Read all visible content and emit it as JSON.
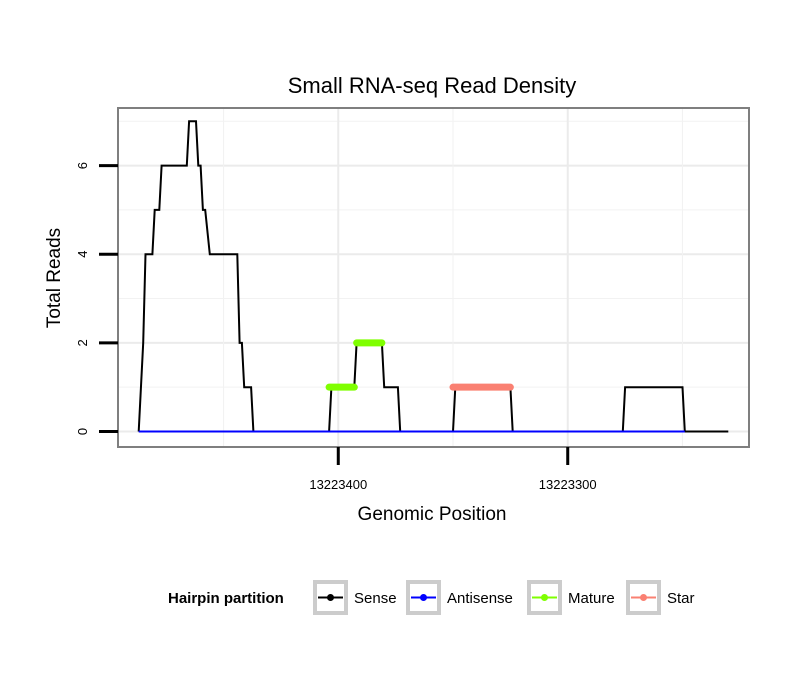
{
  "chart_data": {
    "type": "line",
    "title": "Small RNA-seq Read Density",
    "xlabel": "Genomic Position",
    "ylabel": "Total Reads",
    "x_reversed": true,
    "xlim": [
      13223496,
      13223221
    ],
    "ylim": [
      -0.35,
      7.3
    ],
    "x_ticks": [
      13223400,
      13223300
    ],
    "x_tick_labels": [
      "13223400",
      "13223300"
    ],
    "y_ticks": [
      0,
      2,
      4,
      6
    ],
    "y_tick_labels": [
      "0",
      "2",
      "4",
      "6"
    ],
    "grid": true,
    "legend_position": "bottom",
    "legend": {
      "title": "Hairpin partition",
      "items": [
        {
          "label": "Sense",
          "color": "#000000"
        },
        {
          "label": "Antisense",
          "color": "#0000ff"
        },
        {
          "label": "Mature",
          "color": "#7fff00"
        },
        {
          "label": "Star",
          "color": "#fa8072"
        }
      ]
    },
    "series": [
      {
        "name": "Sense",
        "color": "#000000",
        "points": [
          [
            13223487,
            0
          ],
          [
            13223485,
            2
          ],
          [
            13223484,
            4
          ],
          [
            13223481,
            4
          ],
          [
            13223480,
            5
          ],
          [
            13223478,
            5
          ],
          [
            13223477,
            6
          ],
          [
            13223466,
            6
          ],
          [
            13223465,
            7
          ],
          [
            13223462,
            7
          ],
          [
            13223461,
            6
          ],
          [
            13223460,
            6
          ],
          [
            13223459,
            5
          ],
          [
            13223458,
            5
          ],
          [
            13223456,
            4
          ],
          [
            13223444,
            4
          ],
          [
            13223443,
            2
          ],
          [
            13223442,
            2
          ],
          [
            13223441,
            1
          ],
          [
            13223438,
            1
          ],
          [
            13223437,
            0
          ],
          [
            13223404,
            0
          ],
          [
            13223403,
            1
          ],
          [
            13223393,
            1
          ],
          [
            13223392,
            2
          ],
          [
            13223381,
            2
          ],
          [
            13223380,
            1
          ],
          [
            13223374,
            1
          ],
          [
            13223373,
            0
          ],
          [
            13223350,
            0
          ],
          [
            13223349,
            1
          ],
          [
            13223325,
            1
          ],
          [
            13223324,
            0
          ],
          [
            13223276,
            0
          ],
          [
            13223275,
            1
          ],
          [
            13223250,
            1
          ],
          [
            13223249,
            0
          ],
          [
            13223230,
            0
          ]
        ]
      },
      {
        "name": "Antisense",
        "color": "#0000ff",
        "points": [
          [
            13223487,
            0
          ],
          [
            13223249,
            0
          ]
        ]
      },
      {
        "name": "Mature",
        "color": "#7fff00",
        "segments": [
          {
            "x_start": 13223404,
            "x_end": 13223393,
            "y": 1
          },
          {
            "x_start": 13223392,
            "x_end": 13223381,
            "y": 2
          }
        ]
      },
      {
        "name": "Star",
        "color": "#fa8072",
        "segments": [
          {
            "x_start": 13223350,
            "x_end": 13223325,
            "y": 1
          }
        ]
      }
    ]
  }
}
